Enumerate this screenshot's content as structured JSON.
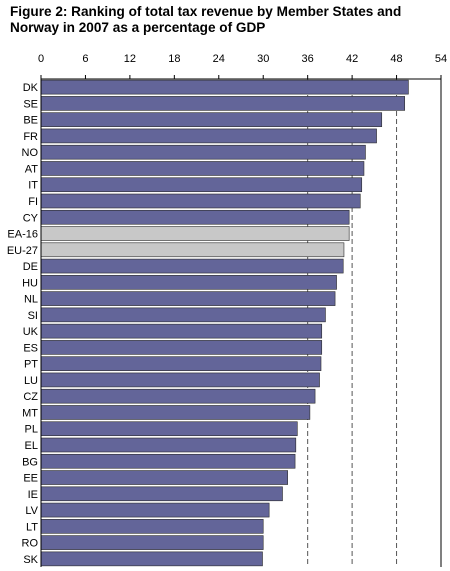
{
  "chart_data": {
    "type": "bar",
    "orientation": "horizontal",
    "title": "Figure 2: Ranking of total tax revenue by Member States and Norway in 2007 as a percentage of GDP",
    "xlim": [
      0,
      54
    ],
    "xticks": [
      "0",
      "6",
      "12",
      "18",
      "24",
      "30",
      "36",
      "42",
      "48",
      "54"
    ],
    "gridlines_dashed_at": [
      36,
      42,
      48
    ],
    "categories": [
      "DK",
      "SE",
      "BE",
      "FR",
      "NO",
      "AT",
      "IT",
      "FI",
      "CY",
      "EA-16",
      "EU-27",
      "DE",
      "HU",
      "NL",
      "SI",
      "UK",
      "ES",
      "PT",
      "LU",
      "CZ",
      "MT",
      "PL",
      "EL",
      "BG",
      "EE",
      "IE",
      "LV",
      "LT",
      "RO",
      "SK"
    ],
    "values": [
      49.6,
      49.1,
      46.0,
      45.3,
      43.8,
      43.6,
      43.3,
      43.1,
      41.6,
      41.6,
      40.9,
      40.8,
      39.9,
      39.7,
      38.4,
      37.9,
      37.9,
      37.8,
      37.6,
      37.0,
      36.3,
      34.6,
      34.4,
      34.3,
      33.3,
      32.6,
      30.8,
      30.0,
      30.0,
      29.9
    ],
    "highlighted": [
      "EA-16",
      "EU-27"
    ],
    "colors": {
      "bar": "#636599",
      "bar_highlight": "#c8c8c8",
      "bar_edge": "#2a2a2a",
      "grid": "#555555"
    }
  }
}
